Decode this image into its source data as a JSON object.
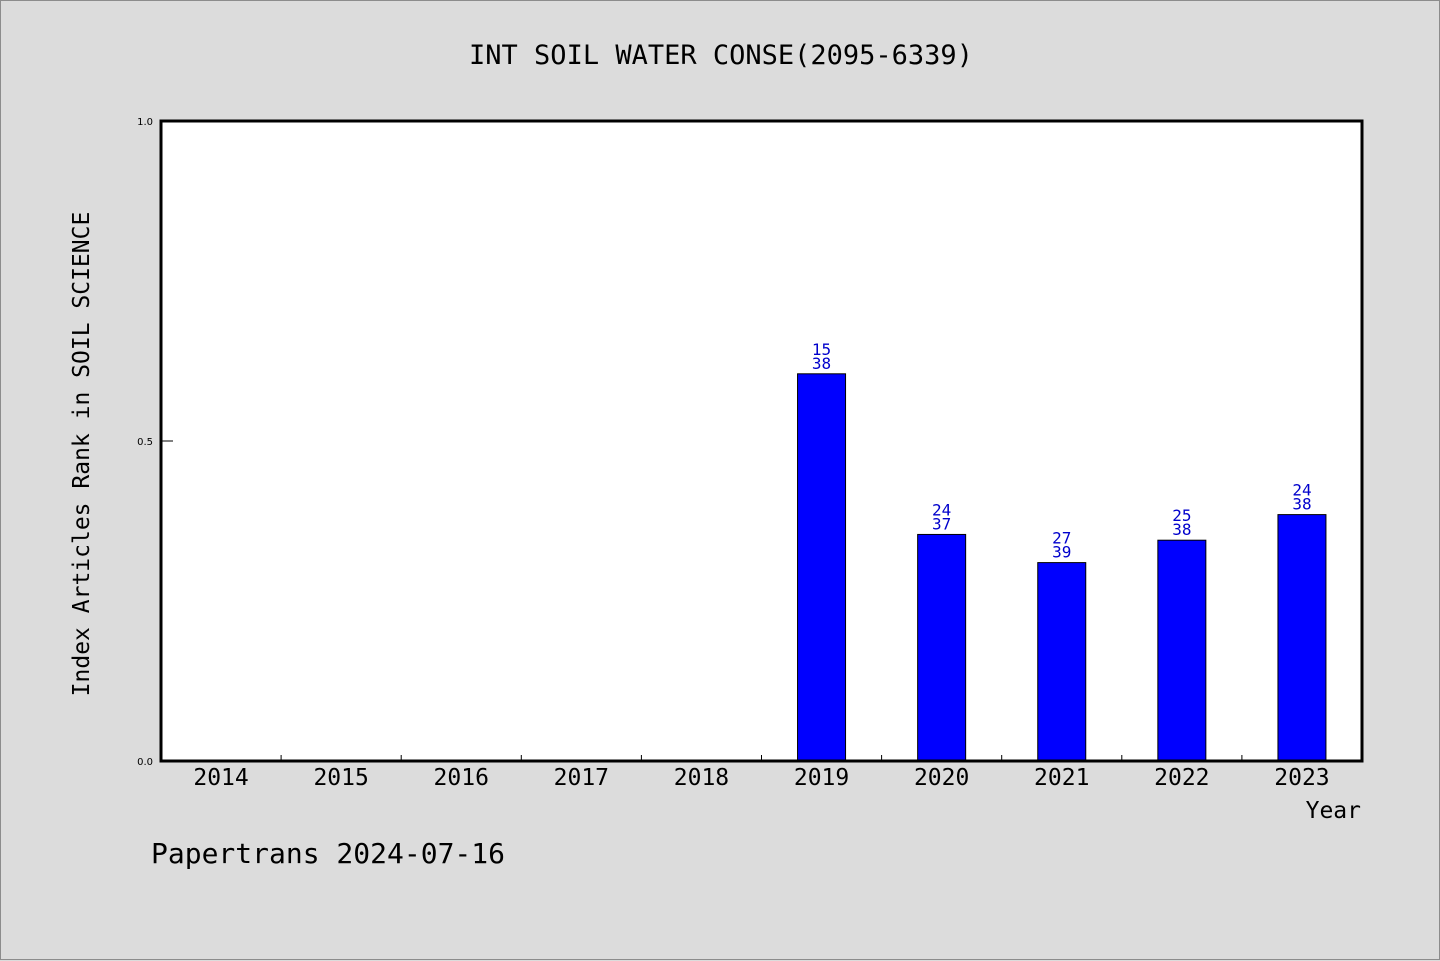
{
  "chart_data": {
    "type": "bar",
    "title": "INT SOIL WATER CONSE(2095-6339)",
    "xlabel": "Year",
    "ylabel": "Index Articles Rank in SOIL SCIENCE",
    "categories": [
      "2014",
      "2015",
      "2016",
      "2017",
      "2018",
      "2019",
      "2020",
      "2021",
      "2022",
      "2023"
    ],
    "values": [
      null,
      null,
      null,
      null,
      null,
      0.605,
      0.354,
      0.31,
      0.345,
      0.385
    ],
    "bar_labels": [
      null,
      null,
      null,
      null,
      null,
      [
        "15",
        "38"
      ],
      [
        "24",
        "37"
      ],
      [
        "27",
        "39"
      ],
      [
        "25",
        "38"
      ],
      [
        "24",
        "38"
      ]
    ],
    "ylim": [
      0,
      1.0
    ],
    "yticks": [
      "0.0",
      "0.5",
      "1.0"
    ],
    "ytick_values": [
      0,
      0.5,
      1.0
    ],
    "grid": false,
    "colors": {
      "bar": "#0000ff",
      "bar_label": "#0000cc",
      "background": "#dcdcdc",
      "plot_background": "#ffffff"
    }
  },
  "footer": "Papertrans 2024-07-16"
}
